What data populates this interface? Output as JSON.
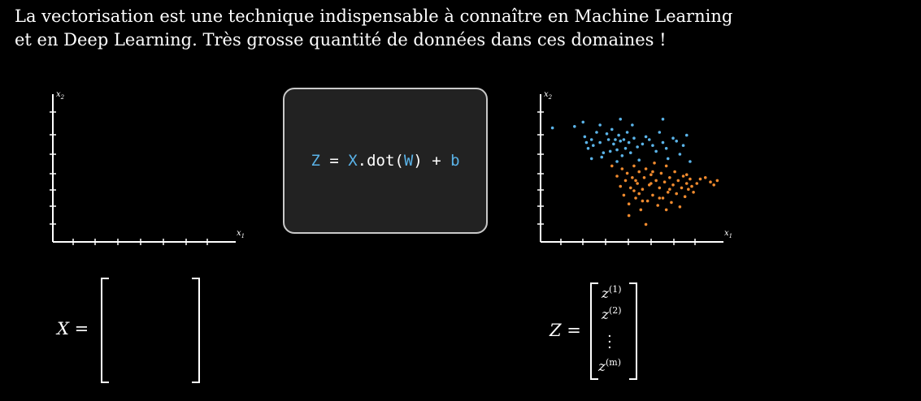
{
  "intro": {
    "line1": "La vectorisation est une technique indispensable à connaître en Machine Learning",
    "line2": "et en Deep Learning. Très grosse quantité de données dans ces domaines !"
  },
  "plot_left": {
    "x_label": "x1",
    "y_label": "x2"
  },
  "plot_right": {
    "x_label": "x1",
    "y_label": "x2",
    "chart_data": {
      "type": "scatter",
      "xlabel": "x1",
      "ylabel": "x2",
      "series": [
        {
          "color": "#5ab3e8",
          "points": [
            [
              0.07,
              0.78
            ],
            [
              0.2,
              0.79
            ],
            [
              0.26,
              0.72
            ],
            [
              0.27,
              0.68
            ],
            [
              0.28,
              0.64
            ],
            [
              0.3,
              0.7
            ],
            [
              0.31,
              0.66
            ],
            [
              0.33,
              0.75
            ],
            [
              0.35,
              0.68
            ],
            [
              0.37,
              0.61
            ],
            [
              0.39,
              0.74
            ],
            [
              0.4,
              0.7
            ],
            [
              0.41,
              0.62
            ],
            [
              0.42,
              0.77
            ],
            [
              0.43,
              0.67
            ],
            [
              0.44,
              0.7
            ],
            [
              0.45,
              0.63
            ],
            [
              0.46,
              0.73
            ],
            [
              0.47,
              0.69
            ],
            [
              0.48,
              0.59
            ],
            [
              0.49,
              0.7
            ],
            [
              0.5,
              0.64
            ],
            [
              0.51,
              0.75
            ],
            [
              0.52,
              0.68
            ],
            [
              0.53,
              0.61
            ],
            [
              0.55,
              0.71
            ],
            [
              0.57,
              0.65
            ],
            [
              0.6,
              0.67
            ],
            [
              0.62,
              0.72
            ],
            [
              0.64,
              0.7
            ],
            [
              0.66,
              0.66
            ],
            [
              0.68,
              0.62
            ],
            [
              0.7,
              0.75
            ],
            [
              0.72,
              0.68
            ],
            [
              0.74,
              0.64
            ],
            [
              0.78,
              0.71
            ],
            [
              0.8,
              0.69
            ],
            [
              0.82,
              0.6
            ],
            [
              0.84,
              0.66
            ],
            [
              0.86,
              0.73
            ],
            [
              0.3,
              0.57
            ],
            [
              0.36,
              0.58
            ],
            [
              0.45,
              0.55
            ],
            [
              0.58,
              0.56
            ],
            [
              0.75,
              0.57
            ],
            [
              0.88,
              0.55
            ],
            [
              0.54,
              0.8
            ],
            [
              0.47,
              0.84
            ],
            [
              0.35,
              0.8
            ],
            [
              0.72,
              0.84
            ],
            [
              0.25,
              0.82
            ]
          ]
        },
        {
          "color": "#f08a2e",
          "points": [
            [
              0.42,
              0.52
            ],
            [
              0.45,
              0.45
            ],
            [
              0.47,
              0.38
            ],
            [
              0.48,
              0.5
            ],
            [
              0.49,
              0.32
            ],
            [
              0.5,
              0.42
            ],
            [
              0.51,
              0.47
            ],
            [
              0.52,
              0.26
            ],
            [
              0.53,
              0.37
            ],
            [
              0.54,
              0.44
            ],
            [
              0.55,
              0.52
            ],
            [
              0.56,
              0.3
            ],
            [
              0.57,
              0.4
            ],
            [
              0.58,
              0.48
            ],
            [
              0.59,
              0.22
            ],
            [
              0.6,
              0.36
            ],
            [
              0.61,
              0.44
            ],
            [
              0.62,
              0.5
            ],
            [
              0.63,
              0.28
            ],
            [
              0.64,
              0.39
            ],
            [
              0.65,
              0.46
            ],
            [
              0.66,
              0.32
            ],
            [
              0.67,
              0.54
            ],
            [
              0.68,
              0.42
            ],
            [
              0.69,
              0.25
            ],
            [
              0.7,
              0.37
            ],
            [
              0.71,
              0.47
            ],
            [
              0.72,
              0.3
            ],
            [
              0.73,
              0.41
            ],
            [
              0.74,
              0.52
            ],
            [
              0.75,
              0.34
            ],
            [
              0.76,
              0.44
            ],
            [
              0.77,
              0.27
            ],
            [
              0.78,
              0.39
            ],
            [
              0.79,
              0.48
            ],
            [
              0.8,
              0.33
            ],
            [
              0.81,
              0.42
            ],
            [
              0.82,
              0.24
            ],
            [
              0.83,
              0.37
            ],
            [
              0.84,
              0.45
            ],
            [
              0.85,
              0.31
            ],
            [
              0.86,
              0.4
            ],
            [
              0.87,
              0.36
            ],
            [
              0.88,
              0.43
            ],
            [
              0.89,
              0.38
            ],
            [
              0.9,
              0.34
            ],
            [
              0.92,
              0.4
            ],
            [
              0.94,
              0.43
            ],
            [
              0.97,
              0.44
            ],
            [
              1.0,
              0.41
            ],
            [
              1.02,
              0.39
            ],
            [
              1.04,
              0.42
            ],
            [
              0.55,
              0.35
            ],
            [
              0.6,
              0.28
            ],
            [
              0.65,
              0.4
            ],
            [
              0.58,
              0.33
            ],
            [
              0.7,
              0.3
            ],
            [
              0.74,
              0.22
            ],
            [
              0.52,
              0.18
            ],
            [
              0.62,
              0.12
            ],
            [
              0.56,
              0.42
            ],
            [
              0.66,
              0.48
            ],
            [
              0.76,
              0.36
            ],
            [
              0.86,
              0.46
            ]
          ]
        }
      ]
    }
  },
  "code": {
    "z": "Z",
    "eq": " = ",
    "x": "X",
    "dot": ".dot(",
    "w": "W",
    "close": ") + ",
    "b": "b"
  },
  "matrix_x": {
    "label": "X ="
  },
  "matrix_z": {
    "label": "Z =",
    "entries": [
      {
        "base": "z",
        "sup": "(1)"
      },
      {
        "base": "z",
        "sup": "(2)"
      },
      {
        "base": "z",
        "sup": "(m)"
      }
    ]
  }
}
